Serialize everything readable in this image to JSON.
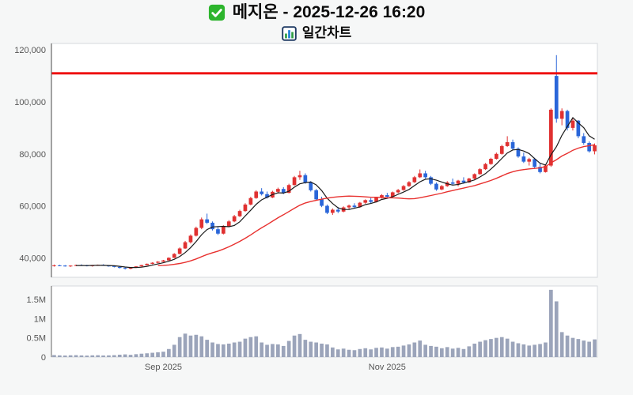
{
  "header": {
    "title": "메지온 - 2025-12-26 16:20",
    "subtitle": "일간차트",
    "checkbox_icon": "green-checkbox-icon",
    "subtitle_icon": "bar-chart-icon"
  },
  "chart_data": {
    "type": "candlestick",
    "title": "메지온 - 2025-12-26 16:20",
    "subtitle": "일간차트",
    "legend": "none",
    "grid": "off",
    "price_axis": {
      "ylim": [
        32500,
        122500
      ],
      "ticks": [
        {
          "value": 40000,
          "label": "40,000"
        },
        {
          "value": 60000,
          "label": "60,000"
        },
        {
          "value": 80000,
          "label": "80,000"
        },
        {
          "value": 100000,
          "label": "100,000"
        },
        {
          "value": 120000,
          "label": "120,000"
        }
      ]
    },
    "volume_axis": {
      "ylim": [
        0,
        1850000
      ],
      "ticks": [
        {
          "value": 0,
          "label": "0"
        },
        {
          "value": 500000,
          "label": "0.5M"
        },
        {
          "value": 1000000,
          "label": "1M"
        },
        {
          "value": 1500000,
          "label": "1.5M"
        }
      ]
    },
    "x_axis": {
      "ticks": [
        {
          "index": 20,
          "label": "Sep 2025"
        },
        {
          "index": 61,
          "label": "Nov 2025"
        }
      ]
    },
    "reference_line": {
      "value": 111000,
      "color": "#ee0000"
    },
    "moving_averages": [
      {
        "period": 5,
        "color": "#1a1a1a"
      },
      {
        "period": 20,
        "color": "#e8312f"
      }
    ],
    "colors": {
      "up": "#e03131",
      "down": "#2a66d9",
      "volume": "#9ba4ba",
      "panel": "#ffffff",
      "panel_border": "#d5d9dd",
      "axis_spine": "#666666",
      "axis_text": "#555555",
      "background": "#f6f7f7"
    },
    "columns": [
      "open",
      "high",
      "low",
      "close",
      "volume"
    ],
    "candles": [
      [
        36900,
        37400,
        36600,
        37100,
        52000
      ],
      [
        37100,
        37300,
        36800,
        37000,
        44000
      ],
      [
        37000,
        37200,
        36600,
        36800,
        40000
      ],
      [
        36800,
        37100,
        36500,
        37000,
        46000
      ],
      [
        37000,
        37400,
        36800,
        37200,
        50000
      ],
      [
        37200,
        37500,
        36900,
        37100,
        43000
      ],
      [
        37100,
        37300,
        36700,
        36900,
        39000
      ],
      [
        36900,
        37200,
        36600,
        37100,
        45000
      ],
      [
        37100,
        37400,
        36900,
        37300,
        48000
      ],
      [
        37300,
        37500,
        36900,
        37000,
        41000
      ],
      [
        37000,
        37200,
        36600,
        36800,
        44000
      ],
      [
        36800,
        37000,
        36300,
        36500,
        50000
      ],
      [
        36500,
        36700,
        35900,
        36100,
        62000
      ],
      [
        36100,
        36300,
        35500,
        35800,
        70000
      ],
      [
        35800,
        36400,
        35600,
        36200,
        58000
      ],
      [
        36200,
        36800,
        36100,
        36700,
        75000
      ],
      [
        36700,
        37300,
        36600,
        37200,
        88000
      ],
      [
        37200,
        37800,
        37100,
        37700,
        98000
      ],
      [
        37700,
        38300,
        37500,
        38100,
        112000
      ],
      [
        38100,
        38700,
        37900,
        38500,
        125000
      ],
      [
        38500,
        39200,
        38400,
        39000,
        140000
      ],
      [
        39000,
        40200,
        38900,
        40000,
        210000
      ],
      [
        40000,
        41800,
        39900,
        41500,
        320000
      ],
      [
        41500,
        44000,
        41300,
        43600,
        520000
      ],
      [
        43600,
        46500,
        43400,
        46000,
        610000
      ],
      [
        46000,
        49000,
        45500,
        48500,
        560000
      ],
      [
        48500,
        52000,
        48200,
        51500,
        580000
      ],
      [
        51500,
        55500,
        51000,
        54800,
        540000
      ],
      [
        54800,
        57000,
        53000,
        53500,
        450000
      ],
      [
        53500,
        54000,
        50500,
        51000,
        380000
      ],
      [
        51000,
        52000,
        48800,
        49300,
        340000
      ],
      [
        49300,
        52500,
        49000,
        52000,
        330000
      ],
      [
        52000,
        54500,
        51800,
        54000,
        350000
      ],
      [
        54000,
        56500,
        53700,
        56000,
        380000
      ],
      [
        56000,
        58500,
        55700,
        58000,
        400000
      ],
      [
        58000,
        61000,
        57700,
        60500,
        480000
      ],
      [
        60500,
        63500,
        60200,
        63000,
        520000
      ],
      [
        63000,
        66000,
        62700,
        65500,
        540000
      ],
      [
        65500,
        66800,
        64000,
        64500,
        380000
      ],
      [
        64500,
        65500,
        62800,
        63200,
        320000
      ],
      [
        63200,
        65800,
        63000,
        65400,
        340000
      ],
      [
        65400,
        67000,
        64800,
        66500,
        330000
      ],
      [
        66500,
        67200,
        64500,
        65000,
        290000
      ],
      [
        65000,
        68500,
        64800,
        68000,
        420000
      ],
      [
        68000,
        71500,
        67800,
        71000,
        560000
      ],
      [
        71000,
        73500,
        70000,
        71800,
        600000
      ],
      [
        71800,
        72500,
        68500,
        69000,
        450000
      ],
      [
        69000,
        69500,
        65500,
        66000,
        400000
      ],
      [
        66000,
        66500,
        62000,
        62500,
        380000
      ],
      [
        62500,
        63500,
        59500,
        60000,
        350000
      ],
      [
        60000,
        60500,
        56800,
        57300,
        330000
      ],
      [
        57300,
        59000,
        56500,
        58500,
        250000
      ],
      [
        58500,
        59500,
        57200,
        57800,
        200000
      ],
      [
        57800,
        59800,
        57500,
        59400,
        220000
      ],
      [
        59400,
        60500,
        58800,
        60100,
        190000
      ],
      [
        60100,
        61000,
        59000,
        59500,
        180000
      ],
      [
        59500,
        61500,
        59300,
        61200,
        210000
      ],
      [
        61200,
        62500,
        60800,
        62200,
        230000
      ],
      [
        62200,
        63000,
        61000,
        61500,
        200000
      ],
      [
        61500,
        63500,
        61300,
        63200,
        240000
      ],
      [
        63200,
        64500,
        62800,
        64100,
        250000
      ],
      [
        64100,
        65000,
        63000,
        63500,
        220000
      ],
      [
        63500,
        65500,
        63300,
        65200,
        260000
      ],
      [
        65200,
        66500,
        64800,
        66100,
        270000
      ],
      [
        66100,
        68000,
        65800,
        67600,
        300000
      ],
      [
        67600,
        69500,
        67300,
        69100,
        330000
      ],
      [
        69100,
        71500,
        68800,
        71000,
        380000
      ],
      [
        71000,
        74000,
        70700,
        72500,
        430000
      ],
      [
        72500,
        73500,
        70500,
        71000,
        320000
      ],
      [
        71000,
        71500,
        68000,
        68500,
        290000
      ],
      [
        68500,
        69000,
        65800,
        66300,
        270000
      ],
      [
        66300,
        68000,
        66000,
        67600,
        230000
      ],
      [
        67600,
        69500,
        67300,
        69000,
        260000
      ],
      [
        69000,
        70500,
        68000,
        68500,
        220000
      ],
      [
        68500,
        70000,
        67500,
        69700,
        240000
      ],
      [
        69700,
        71000,
        68500,
        69000,
        210000
      ],
      [
        69000,
        70800,
        68800,
        70500,
        280000
      ],
      [
        70500,
        72500,
        70200,
        72200,
        350000
      ],
      [
        72200,
        74500,
        72000,
        74100,
        400000
      ],
      [
        74100,
        76500,
        73800,
        76100,
        440000
      ],
      [
        76100,
        78500,
        75800,
        78100,
        470000
      ],
      [
        78100,
        80500,
        77800,
        80000,
        500000
      ],
      [
        80000,
        83500,
        79700,
        83000,
        520000
      ],
      [
        83000,
        86800,
        82700,
        84500,
        480000
      ],
      [
        84500,
        85500,
        81500,
        82000,
        400000
      ],
      [
        82000,
        82500,
        78500,
        79000,
        360000
      ],
      [
        79000,
        80500,
        76500,
        77000,
        330000
      ],
      [
        77000,
        78500,
        75500,
        78000,
        300000
      ],
      [
        78000,
        78500,
        74500,
        75000,
        320000
      ],
      [
        75000,
        76500,
        72500,
        73000,
        340000
      ],
      [
        73000,
        76000,
        72800,
        75500,
        380000
      ],
      [
        75500,
        97500,
        75000,
        97000,
        1750000
      ],
      [
        110000,
        118000,
        92000,
        93500,
        1450000
      ],
      [
        93500,
        97500,
        91000,
        96500,
        650000
      ],
      [
        96500,
        97000,
        89000,
        90000,
        560000
      ],
      [
        90000,
        93500,
        89000,
        92800,
        500000
      ],
      [
        92800,
        93000,
        86000,
        86800,
        470000
      ],
      [
        86800,
        88000,
        83500,
        84200,
        430000
      ],
      [
        84200,
        84800,
        80500,
        81000,
        400000
      ],
      [
        81000,
        84000,
        79800,
        83300,
        460000
      ]
    ]
  }
}
